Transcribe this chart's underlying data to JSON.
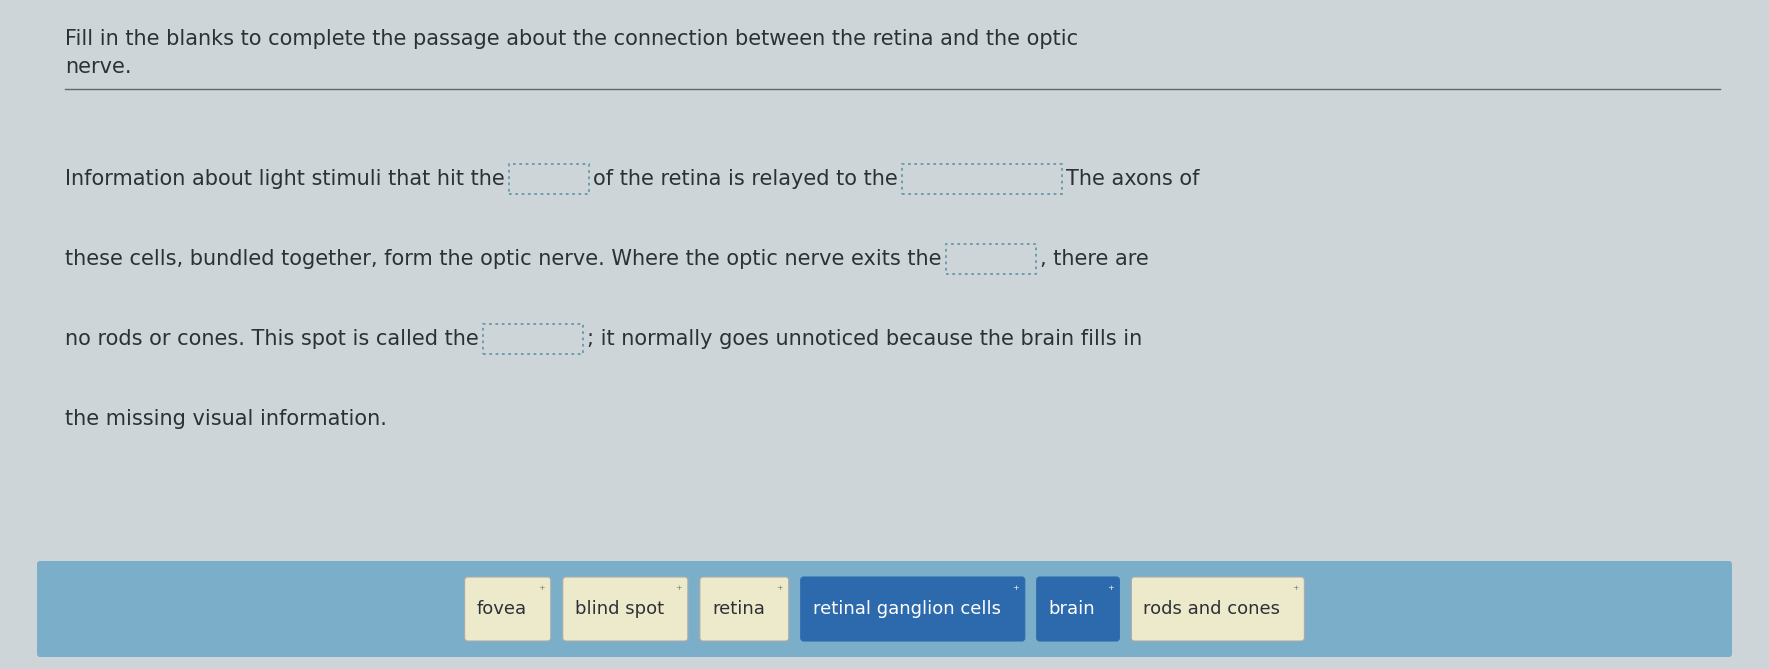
{
  "title_line1": "Fill in the blanks to complete the passage about the connection between the retina and the optic",
  "title_line2": "nerve.",
  "bg_color": "#cdd5d8",
  "text_color": "#2c3135",
  "line1_pre": "Information about light stimuli that hit the",
  "line1_mid": "of the retina is relayed to the",
  "line1_post": "The axons of",
  "line2_pre": "these cells, bundled together, form the optic nerve. Where the optic nerve exits the",
  "line2_post": ", there are",
  "line3_pre": "no rods or cones. This spot is called the",
  "line3_post": "; it normally goes unnoticed because the brain fills in",
  "line4": "the missing visual information.",
  "word_bank": [
    "fovea",
    "blind spot",
    "retina",
    "retinal ganglion cells",
    "brain",
    "rods and cones"
  ],
  "word_bank_bg": "#7bafc9",
  "word_chip_bg": "#edeacc",
  "highlighted": [
    "retinal ganglion cells",
    "brain"
  ],
  "highlight_color": "#2d6aad",
  "separator_color": "#666666",
  "blank_border_color": "#6699aa",
  "font_size": 15,
  "title_font_size": 15
}
